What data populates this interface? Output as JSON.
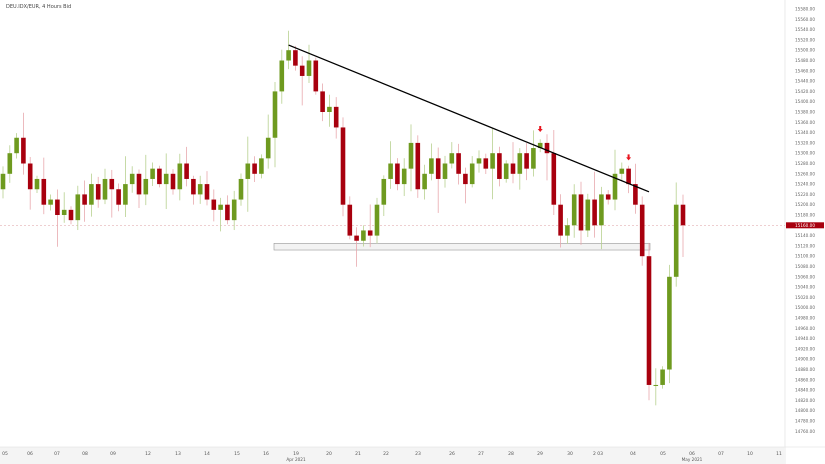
{
  "chart_data": {
    "type": "candlestick",
    "title": "DEU.IDX/EUR, 4 Hours Bid",
    "ylim": [
      14750,
      15590
    ],
    "y_ticks": [
      15580,
      15560,
      15540,
      15520,
      15500,
      15480,
      15460,
      15440,
      15420,
      15400,
      15380,
      15360,
      15340,
      15320,
      15300,
      15280,
      15260,
      15240,
      15220,
      15200,
      15180,
      15140,
      15120,
      15100,
      15080,
      15060,
      15040,
      15020,
      15000,
      14980,
      14960,
      14940,
      14920,
      14900,
      14880,
      14860,
      14840,
      14820,
      14800,
      14780,
      14760
    ],
    "x_ticks": [
      {
        "label": "05",
        "sub": ""
      },
      {
        "label": "06",
        "sub": ""
      },
      {
        "label": "07",
        "sub": ""
      },
      {
        "label": "08",
        "sub": ""
      },
      {
        "label": "09",
        "sub": ""
      },
      {
        "label": "12",
        "sub": ""
      },
      {
        "label": "13",
        "sub": ""
      },
      {
        "label": "14",
        "sub": ""
      },
      {
        "label": "15",
        "sub": ""
      },
      {
        "label": "16",
        "sub": ""
      },
      {
        "label": "19",
        "sub": "Apr 2021"
      },
      {
        "label": "20",
        "sub": ""
      },
      {
        "label": "21",
        "sub": ""
      },
      {
        "label": "22",
        "sub": ""
      },
      {
        "label": "23",
        "sub": ""
      },
      {
        "label": "26",
        "sub": ""
      },
      {
        "label": "27",
        "sub": ""
      },
      {
        "label": "28",
        "sub": ""
      },
      {
        "label": "29",
        "sub": ""
      },
      {
        "label": "30",
        "sub": ""
      },
      {
        "label": "2 03",
        "sub": ""
      },
      {
        "label": "04",
        "sub": ""
      },
      {
        "label": "05",
        "sub": ""
      },
      {
        "label": "06",
        "sub": "May 2021"
      },
      {
        "label": "07",
        "sub": ""
      },
      {
        "label": "10",
        "sub": ""
      },
      {
        "label": "11",
        "sub": ""
      }
    ],
    "current_price": 15160.0,
    "current_price_label": "15160.00",
    "closes": [
      15260,
      15300,
      15330,
      15280,
      15230,
      15250,
      15200,
      15210,
      15180,
      15190,
      15170,
      15220,
      15200,
      15240,
      15210,
      15250,
      15230,
      15200,
      15240,
      15260,
      15220,
      15250,
      15270,
      15240,
      15260,
      15230,
      15280,
      15250,
      15220,
      15240,
      15210,
      15190,
      15200,
      15170,
      15210,
      15250,
      15280,
      15260,
      15290,
      15330,
      15420,
      15480,
      15500,
      15470,
      15450,
      15480,
      15420,
      15380,
      15390,
      15350,
      15200,
      15140,
      15130,
      15150,
      15140,
      15200,
      15250,
      15280,
      15240,
      15270,
      15320,
      15230,
      15260,
      15290,
      15250,
      15280,
      15300,
      15260,
      15240,
      15280,
      15290,
      15270,
      15300,
      15250,
      15280,
      15260,
      15300,
      15270,
      15310,
      15320,
      15300,
      15200,
      15140,
      15160,
      15220,
      15150,
      15210,
      15160,
      15220,
      15210,
      15260,
      15270,
      15240,
      15200,
      15100,
      14850,
      14850,
      14880,
      15060,
      15200,
      15160
    ],
    "first_open": 15230,
    "trendline": {
      "from": {
        "index": 42,
        "price": 15510
      },
      "to": {
        "index": 95,
        "price": 15225
      }
    },
    "support_zone": {
      "from_index": 40,
      "to_index": 95,
      "top": 15125,
      "bottom": 15112
    },
    "signal_arrows": [
      {
        "index": 79,
        "price": 15345
      },
      {
        "index": 92,
        "price": 15290
      }
    ],
    "colors": {
      "up": "#6e9a1f",
      "down": "#a8000e",
      "up_wick": "#b7d08f",
      "down_wick": "#e8a8ae",
      "trendline": "#000000",
      "price_tag": "#a8000e"
    }
  }
}
